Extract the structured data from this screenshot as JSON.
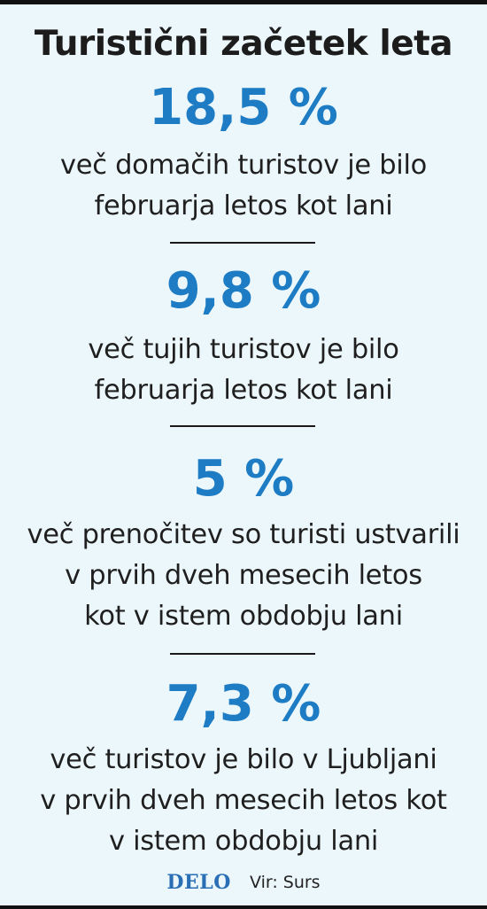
{
  "title": "Turistični začetek leta",
  "stats": [
    {
      "value": "18,5 %",
      "lines": [
        "več domačih turistov je bilo",
        "februarja letos kot lani"
      ]
    },
    {
      "value": "9,8 %",
      "lines": [
        "več tujih turistov je bilo",
        "februarja letos kot lani"
      ]
    },
    {
      "value": "5 %",
      "lines": [
        "več prenočitev so turisti ustvarili",
        "v prvih dveh mesecih letos",
        "kot v istem obdobju lani"
      ]
    },
    {
      "value": "7,3 %",
      "lines": [
        "več turistov je bilo v Ljubljani",
        "v prvih dveh mesecih letos kot",
        "v istem obdobju lani"
      ]
    }
  ],
  "footer": {
    "logo": "DELO",
    "source": "Vir: Surs"
  },
  "colors": {
    "accent": "#1d7cc4",
    "background": "#ecf7fb",
    "logo": "#2a6fb5"
  }
}
